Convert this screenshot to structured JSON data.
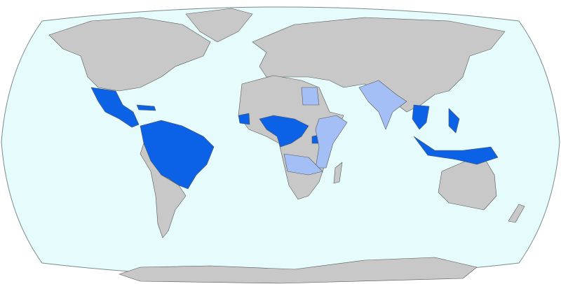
{
  "map": {
    "projection": "robinson",
    "colors": {
      "ocean": "#e6fbfc",
      "ocean_border": "#7a8a8c",
      "land": "#c8c8c8",
      "category_dark": "#0c62e6",
      "category_light": "#a3bff5",
      "border": "#555555"
    }
  }
}
